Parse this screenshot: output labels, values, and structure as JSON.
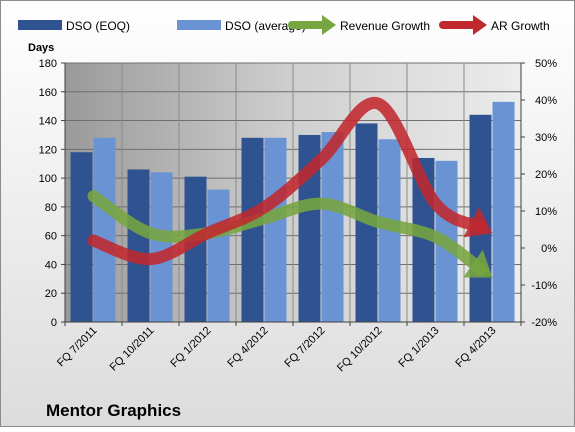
{
  "chart_data": {
    "type": "bar",
    "title": "Mentor Graphics",
    "ylabel": "Days",
    "y2label": "",
    "categories": [
      "FQ 7/2011",
      "FQ 10/2011",
      "FQ 1/2012",
      "FQ 4/2012",
      "FQ 7/2012",
      "FQ 10/2012",
      "FQ 1/2013",
      "FQ 4/2013"
    ],
    "series": [
      {
        "name": "DSO (EOQ)",
        "kind": "bar",
        "axis": "left",
        "color": "#2E5390",
        "values": [
          118,
          106,
          101,
          128,
          130,
          138,
          114,
          144
        ]
      },
      {
        "name": "DSO (average)",
        "kind": "bar",
        "axis": "left",
        "color": "#6A93D4",
        "values": [
          128,
          104,
          92,
          128,
          132,
          127,
          112,
          153
        ]
      },
      {
        "name": "Revenue Growth",
        "kind": "line-arrow",
        "axis": "right",
        "color": "#77A540",
        "values": [
          14,
          4,
          4,
          8,
          12,
          7,
          3,
          -8
        ]
      },
      {
        "name": "AR Growth",
        "kind": "line-arrow",
        "axis": "right",
        "color": "#C0282E",
        "values": [
          2,
          -3,
          4,
          11,
          24,
          39,
          12,
          4
        ]
      }
    ],
    "ylim": [
      0,
      180
    ],
    "yticks": [
      0,
      20,
      40,
      60,
      80,
      100,
      120,
      140,
      160,
      180
    ],
    "y2lim": [
      -20,
      50
    ],
    "y2ticks": [
      "-20%",
      "-10%",
      "0%",
      "10%",
      "20%",
      "30%",
      "40%",
      "50%"
    ],
    "y2tick_values": [
      -20,
      -10,
      0,
      10,
      20,
      30,
      40,
      50
    ],
    "legend_position": "top",
    "grid": true
  }
}
